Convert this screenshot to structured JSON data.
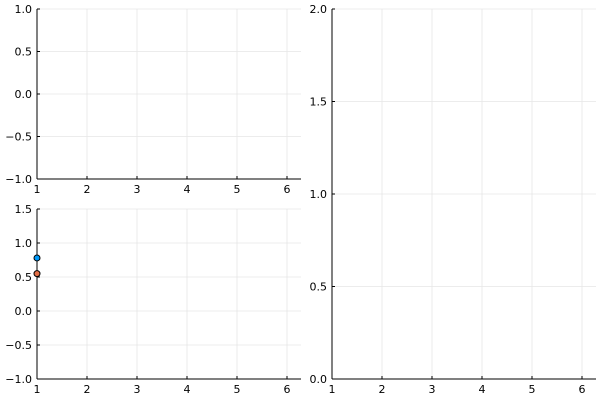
{
  "chart_data": [
    {
      "type": "scatter",
      "xlim": [
        1,
        6.28
      ],
      "ylim": [
        -1,
        1
      ],
      "xticks": [
        "1",
        "2",
        "3",
        "4",
        "5",
        "6"
      ],
      "yticks": [
        "−1.0",
        "−0.5",
        "0.0",
        "0.5",
        "1.0"
      ],
      "ytick_values": [
        -1,
        -0.5,
        0,
        0.5,
        1
      ],
      "grid": true,
      "series": []
    },
    {
      "type": "scatter",
      "xlim": [
        1,
        6.28
      ],
      "ylim": [
        -1,
        1.5
      ],
      "xticks": [
        "1",
        "2",
        "3",
        "4",
        "5",
        "6"
      ],
      "yticks": [
        "−1.0",
        "−0.5",
        "0.0",
        "0.5",
        "1.0",
        "1.5"
      ],
      "ytick_values": [
        -1,
        -0.5,
        0,
        0.5,
        1,
        1.5
      ],
      "grid": true,
      "series": [
        {
          "color": "#009AFA",
          "x": [
            1
          ],
          "y": [
            0.78
          ]
        },
        {
          "color": "#E36F47",
          "x": [
            1
          ],
          "y": [
            0.55
          ]
        }
      ]
    },
    {
      "type": "scatter",
      "xlim": [
        1,
        6.28
      ],
      "ylim": [
        0,
        2
      ],
      "xticks": [
        "1",
        "2",
        "3",
        "4",
        "5",
        "6"
      ],
      "yticks": [
        "0.0",
        "0.5",
        "1.0",
        "1.5",
        "2.0"
      ],
      "ytick_values": [
        0,
        0.5,
        1,
        1.5,
        2
      ],
      "grid": true,
      "series": []
    }
  ]
}
